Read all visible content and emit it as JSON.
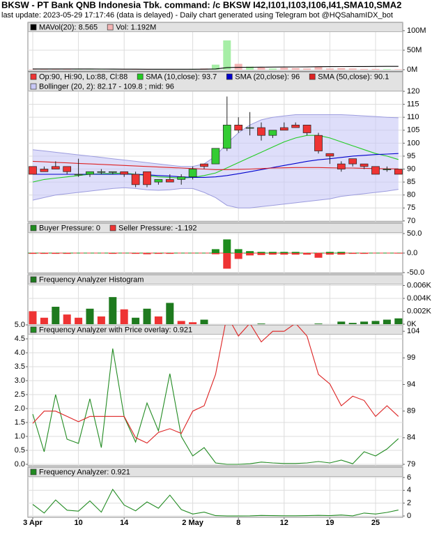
{
  "title": "BKSW - PT Bank QNB Indonesia Tbk. command: /c BKSW I42,I101,I103,I106,I41,SMA10,SMA2",
  "subtitle": "last update: 2023-05-29 17:17:46 (data is delayed) - Daily chart generated using Telegram bot @HQSahamIDX_bot",
  "chart_data": [
    {
      "type": "bar",
      "grid": true,
      "ylim": [
        0,
        110.7
      ],
      "yticks": [
        {
          "value": 0,
          "label": "0M"
        },
        {
          "value": 50,
          "label": "50M"
        },
        {
          "value": 100,
          "label": "100M"
        }
      ],
      "series": [
        {
          "name": "MAVol(20): 8.565",
          "type": "line",
          "color": "#000000",
          "values": [
            2,
            2,
            2,
            2,
            2,
            2,
            1.8,
            1.6,
            1.5,
            1.4,
            1.3,
            1.3,
            1.2,
            1.2,
            1.3,
            1.4,
            2,
            5.5,
            6,
            6.3,
            6.6,
            6.8,
            7,
            7.2,
            7.4,
            7.6,
            7.8,
            8,
            8.2,
            8.3,
            8.4,
            8.5,
            8.565
          ]
        },
        {
          "name": "Vol: 1.192M",
          "color": "#f4b4b4",
          "up_color": "#a6eea6",
          "values": [
            1,
            1.5,
            1,
            1,
            0.5,
            0.5,
            0.5,
            0.3,
            0.5,
            1,
            1.5,
            0.5,
            0.5,
            0.5,
            2,
            3,
            13,
            75,
            15,
            8,
            6,
            3,
            5,
            4,
            3,
            8,
            3,
            4,
            3,
            2,
            2,
            1.5,
            1.192
          ]
        }
      ]
    },
    {
      "type": "candlestick",
      "grid": true,
      "name": "Op:90, Hi:90, Lo:88, Cl:88",
      "up_color": "#33cc33",
      "down_color": "#ee3333",
      "ylim": [
        69.7,
        123.5
      ],
      "yticks": [
        70,
        75,
        80,
        85,
        90,
        95,
        100,
        105,
        110,
        115,
        120
      ],
      "open": [
        91,
        90,
        91,
        91,
        88,
        88,
        89,
        89,
        89,
        88,
        89,
        85,
        86,
        86,
        87,
        92,
        92,
        98,
        107,
        106,
        106,
        103,
        106,
        107,
        107,
        103,
        96,
        92,
        94,
        92,
        91,
        90,
        90
      ],
      "high": [
        91,
        91,
        93,
        91,
        94,
        89,
        90,
        89,
        89,
        89,
        89,
        86,
        88,
        88,
        91,
        92,
        98,
        118,
        110,
        112,
        108,
        105,
        108,
        108,
        107,
        104,
        96,
        93,
        94,
        92,
        91,
        91,
        90
      ],
      "low": [
        88,
        89,
        90,
        88,
        87,
        87,
        88,
        88,
        87,
        83,
        83,
        84,
        85,
        84,
        86,
        90,
        92,
        97,
        104,
        103,
        101,
        102,
        105,
        106,
        103,
        96,
        92,
        89,
        91,
        90,
        88,
        89,
        88
      ],
      "close": [
        88,
        89,
        90,
        89,
        88,
        89,
        89,
        89,
        88,
        84,
        84,
        86,
        85,
        87,
        90,
        91,
        98,
        107,
        105,
        106,
        103,
        105,
        105,
        106,
        104,
        97,
        95,
        90,
        92,
        91,
        88,
        90,
        88
      ],
      "series": [
        {
          "name": "SMA (10,close): 93.7",
          "color": "#22cc22",
          "values": [
            85,
            86,
            86.5,
            87,
            87.5,
            88,
            88.2,
            88.3,
            88.5,
            88,
            87.5,
            87,
            86.8,
            86.5,
            86.8,
            87.5,
            88.5,
            90.5,
            92.5,
            94.5,
            96.5,
            98.5,
            100.5,
            102,
            103,
            103,
            102,
            100.5,
            99,
            97.5,
            96,
            95,
            93.7
          ]
        },
        {
          "name": "SMA (20,close): 96",
          "color": "#0000cc",
          "values": [
            88,
            88,
            88,
            88,
            88,
            88,
            88,
            88,
            88,
            88,
            87.8,
            87.5,
            87.3,
            87,
            86.8,
            86.8,
            87,
            87.5,
            88.2,
            89,
            89.8,
            90.6,
            91.4,
            92.2,
            93,
            93.6,
            94,
            94.5,
            95,
            95.3,
            95.6,
            95.8,
            96
          ]
        },
        {
          "name": "SMA (50,close): 90.1",
          "color": "#dd2222",
          "values": [
            93,
            92.8,
            92.6,
            92.4,
            92.2,
            92,
            91.8,
            91.6,
            91.4,
            91.2,
            91,
            90.8,
            90.6,
            90.4,
            90.2,
            90,
            89.8,
            89.8,
            89.9,
            90,
            90.2,
            90.4,
            90.5,
            90.6,
            90.6,
            90.6,
            90.5,
            90.4,
            90.4,
            90.3,
            90.2,
            90.1,
            90.1
          ]
        }
      ],
      "bands": {
        "name": "Bollinger (20, 2): 82.17 - 109.8 ; mid: 96",
        "color": "#c8c8f6",
        "edge_color": "#9c9cde",
        "upper": [
          97.5,
          97,
          96.5,
          96,
          95.5,
          95,
          94.5,
          94,
          93.5,
          93,
          92.5,
          92,
          91.5,
          91,
          91,
          92,
          95,
          100,
          104,
          107,
          109,
          110,
          110.5,
          111,
          111,
          111,
          111,
          111,
          110.8,
          110.5,
          110.3,
          110,
          109.8
        ],
        "lower": [
          78,
          79,
          80,
          80.5,
          81,
          81.5,
          82,
          82.5,
          82.8,
          82.5,
          82,
          81.8,
          82,
          82.5,
          82.5,
          81,
          79,
          76,
          75,
          75,
          75.5,
          76,
          76.5,
          77,
          77.5,
          78,
          78.5,
          79.5,
          80,
          80.5,
          81,
          81.5,
          82.17
        ]
      }
    },
    {
      "type": "bar",
      "grid": true,
      "ylim": [
        -51.8,
        51.8
      ],
      "yticks": [
        {
          "value": -50,
          "label": "-50.0"
        },
        {
          "value": 0,
          "label": "0.0"
        },
        {
          "value": 50,
          "label": "50.0"
        }
      ],
      "series": [
        {
          "name": "Buyer Pressure: 0",
          "color": "#1e8c1e",
          "values": [
            0,
            0,
            0,
            0,
            0,
            0,
            0,
            0,
            0,
            0,
            0,
            0,
            0,
            0,
            0,
            0,
            10,
            35,
            10,
            5,
            3,
            3,
            3,
            3,
            0,
            0,
            3,
            3,
            0,
            0,
            0,
            0,
            0
          ]
        },
        {
          "name": "Seller Pressure: -1.192",
          "color": "#ee3333",
          "values": [
            -2,
            -2,
            -2,
            -2,
            0,
            0,
            0,
            -2,
            0,
            -2,
            -3,
            -2,
            -2,
            0,
            0,
            0,
            -3,
            -40,
            -15,
            -6,
            -5,
            -4,
            -4,
            -4,
            -4,
            -12,
            -4,
            -4,
            -2,
            -2,
            0,
            0,
            -1.192
          ]
        }
      ]
    },
    {
      "type": "bar",
      "grid": true,
      "ylim": [
        0,
        0.00616
      ],
      "yticks": [
        {
          "value": 0,
          "label": "0K"
        },
        {
          "value": 0.002,
          "label": "0.002K"
        },
        {
          "value": 0.004,
          "label": "0.004K"
        },
        {
          "value": 0.006,
          "label": "0.006K"
        }
      ],
      "series": [
        {
          "name": "Frequency Analyzer Histogram",
          "color": "#1e7a1e",
          "colors": [
            "#ee3333",
            "#ee3333",
            "#1e7a1e",
            "#ee3333",
            "#ee3333",
            "#1e7a1e",
            "#ee3333",
            "#1e7a1e",
            "#ee3333",
            "#1e7a1e",
            "#1e7a1e",
            "#ee3333",
            "#1e7a1e",
            "#ee3333",
            "#ee3333",
            "#1e7a1e",
            "#1e7a1e",
            "#1e7a1e",
            "#1e7a1e",
            "#1e7a1e",
            "#1e7a1e",
            "#1e7a1e",
            "#1e7a1e",
            "#1e7a1e",
            "#1e7a1e",
            "#1e7a1e",
            "#1e7a1e",
            "#1e7a1e",
            "#1e7a1e",
            "#1e7a1e",
            "#1e7a1e",
            "#1e7a1e",
            "#1e7a1e"
          ],
          "values": [
            0.002,
            0.001,
            0.0027,
            0.0015,
            0.001,
            0.0024,
            0.0012,
            0.0042,
            0.0023,
            0.001,
            0.0024,
            0.0012,
            0.0033,
            0.0005,
            0.0003,
            0.0007,
            0,
            0,
            0,
            0,
            0.0001,
            0,
            0,
            0,
            0,
            0.0001,
            0,
            0.0004,
            0.0002,
            0.0004,
            0.0005,
            0.0007,
            0.0009
          ]
        }
      ]
    },
    {
      "type": "line",
      "grid": true,
      "ylim": [
        0,
        5
      ],
      "yticks": [
        {
          "value": 0,
          "label": "0.0"
        },
        {
          "value": 0.5,
          "label": "0.5"
        },
        {
          "value": 1,
          "label": "1.0"
        },
        {
          "value": 1.5,
          "label": "1.5"
        },
        {
          "value": 2,
          "label": "2.0"
        },
        {
          "value": 2.5,
          "label": "2.5"
        },
        {
          "value": 3,
          "label": "3.0"
        },
        {
          "value": 3.5,
          "label": "3.5"
        },
        {
          "value": 4,
          "label": "4.0"
        },
        {
          "value": 4.5,
          "label": "4.5"
        },
        {
          "value": 5,
          "label": "5.0"
        }
      ],
      "y2lim": [
        79,
        105.2
      ],
      "y2ticks": [
        79,
        84,
        89,
        94,
        99,
        104
      ],
      "series": [
        {
          "name": "Frequency Analyzer with Price overlay: 0.921",
          "color": "#228b22",
          "values": [
            1.8,
            0.45,
            2.5,
            0.9,
            0.75,
            2.35,
            0.6,
            4.15,
            1.7,
            0.8,
            2.2,
            1.2,
            3.25,
            1.0,
            0.3,
            0.6,
            0.05,
            0,
            0,
            0.02,
            0.08,
            0.05,
            0.03,
            0.03,
            0.05,
            0.1,
            0.05,
            0.15,
            0.02,
            0.45,
            0.3,
            0.55,
            0.921
          ]
        },
        {
          "color": "#dd2222",
          "axis": "y2",
          "values": [
            86.7,
            89,
            89,
            88,
            87,
            88,
            88,
            88,
            88,
            84,
            83,
            85,
            85.7,
            84.8,
            89,
            90,
            95.9,
            107,
            103.1,
            105.5,
            102,
            104,
            104,
            105.5,
            103.1,
            95.9,
            94.1,
            90,
            91.8,
            91,
            88,
            90,
            88
          ]
        }
      ]
    },
    {
      "type": "line",
      "grid": true,
      "ylim": [
        -0.1,
        6.1
      ],
      "yticks": [
        0,
        2,
        4,
        6
      ],
      "categories": [
        "3 Apr",
        null,
        null,
        null,
        "10",
        null,
        null,
        null,
        "14",
        null,
        null,
        null,
        null,
        null,
        "2 May",
        null,
        null,
        null,
        "8",
        null,
        null,
        null,
        "12",
        null,
        null,
        null,
        "19",
        null,
        null,
        null,
        "25",
        null,
        null
      ],
      "series": [
        {
          "name": "Frequency Analyzer: 0.921",
          "color": "#228b22",
          "values": [
            1.8,
            0.45,
            2.5,
            0.9,
            0.75,
            2.35,
            0.6,
            4.15,
            1.7,
            0.8,
            2.2,
            1.2,
            3.25,
            1.0,
            0.3,
            0.6,
            0.05,
            0,
            0,
            0.02,
            0.08,
            0.05,
            0.03,
            0.03,
            0.05,
            0.1,
            0.05,
            0.15,
            0.02,
            0.45,
            0.3,
            0.55,
            0.921
          ]
        }
      ]
    }
  ]
}
